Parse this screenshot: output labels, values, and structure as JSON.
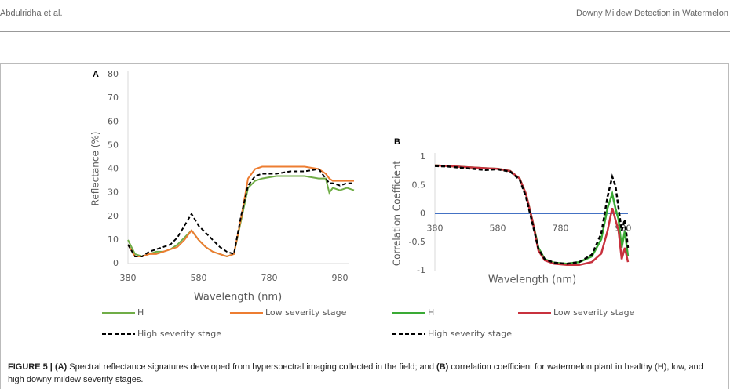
{
  "header": {
    "left": "Abdulridha et al.",
    "right": "Downy Mildew Detection in Watermelon"
  },
  "chart_data": [
    {
      "type": "line",
      "label": "A",
      "x_label": "Wavelength (nm)",
      "y_label": "Reflectance (%)",
      "x": [
        380,
        400,
        420,
        440,
        460,
        480,
        500,
        520,
        540,
        560,
        580,
        600,
        620,
        640,
        660,
        680,
        700,
        720,
        740,
        760,
        800,
        840,
        880,
        920,
        940,
        950,
        960,
        980,
        1000,
        1020
      ],
      "xlim": [
        380,
        980
      ],
      "xticks": [
        380,
        580,
        780,
        980
      ],
      "ylim": [
        0,
        80
      ],
      "yticks": [
        0,
        10,
        20,
        30,
        40,
        50,
        60,
        70,
        80
      ],
      "series": [
        {
          "name": "H",
          "color": "#70ad47",
          "style": "solid",
          "values": [
            10,
            4,
            3,
            4,
            5,
            5,
            6,
            8,
            11,
            14,
            10,
            7,
            5,
            4,
            3,
            4,
            18,
            32,
            35,
            36,
            37,
            37,
            37,
            36,
            36,
            30,
            32,
            31,
            32,
            31
          ]
        },
        {
          "name": "Low severity stage",
          "color": "#ed7d31",
          "style": "solid",
          "values": [
            8,
            3,
            3,
            4,
            4,
            5,
            6,
            7,
            10,
            14,
            10,
            7,
            5,
            4,
            3,
            4,
            19,
            36,
            40,
            41,
            41,
            41,
            41,
            40,
            38,
            36,
            35,
            35,
            35,
            35
          ]
        },
        {
          "name": "High severity stage",
          "color": "#000000",
          "style": "dashed",
          "values": [
            8,
            3,
            3,
            5,
            6,
            7,
            8,
            11,
            16,
            21,
            16,
            13,
            10,
            7,
            5,
            4,
            20,
            33,
            37,
            38,
            38,
            39,
            39,
            40,
            36,
            34,
            34,
            33,
            34,
            34
          ]
        }
      ]
    },
    {
      "type": "line",
      "label": "B",
      "x_label": "Wavelength (nm)",
      "y_label": "Correlation Coefficient",
      "x": [
        380,
        420,
        480,
        540,
        580,
        620,
        650,
        670,
        690,
        710,
        730,
        760,
        800,
        840,
        880,
        910,
        930,
        945,
        955,
        965,
        975,
        985,
        995
      ],
      "xlim": [
        380,
        980
      ],
      "xticks": [
        380,
        580,
        780,
        980
      ],
      "ylim": [
        -1,
        1
      ],
      "yticks": [
        -1,
        -0.5,
        0,
        0.5,
        1
      ],
      "series": [
        {
          "name": "H",
          "color": "#3aaa35",
          "style": "solid",
          "values": [
            0.85,
            0.84,
            0.82,
            0.8,
            0.79,
            0.75,
            0.62,
            0.35,
            -0.1,
            -0.6,
            -0.8,
            -0.86,
            -0.88,
            -0.85,
            -0.75,
            -0.45,
            0.1,
            0.35,
            0.1,
            -0.1,
            -0.6,
            -0.3,
            -0.75
          ]
        },
        {
          "name": "Low severity stage",
          "color": "#c8313d",
          "style": "solid",
          "values": [
            0.85,
            0.84,
            0.82,
            0.8,
            0.79,
            0.75,
            0.62,
            0.35,
            -0.1,
            -0.65,
            -0.82,
            -0.88,
            -0.9,
            -0.9,
            -0.85,
            -0.7,
            -0.3,
            0.1,
            -0.1,
            -0.3,
            -0.8,
            -0.6,
            -0.85
          ]
        },
        {
          "name": "High severity stage",
          "color": "#000000",
          "style": "dashed",
          "values": [
            0.84,
            0.83,
            0.8,
            0.77,
            0.78,
            0.74,
            0.6,
            0.3,
            -0.15,
            -0.62,
            -0.8,
            -0.86,
            -0.88,
            -0.85,
            -0.72,
            -0.35,
            0.3,
            0.65,
            0.5,
            0.1,
            -0.3,
            -0.1,
            -0.6
          ]
        }
      ]
    }
  ],
  "caption": {
    "label": "FIGURE 5 |",
    "a": "(A)",
    "a_text": " Spectral reflectance signatures developed from hyperspectral imaging collected in the field; and ",
    "b": "(B)",
    "b_text": " correlation coefficient for watermelon plant in healthy (H), low, and high downy mildew severity stages."
  }
}
